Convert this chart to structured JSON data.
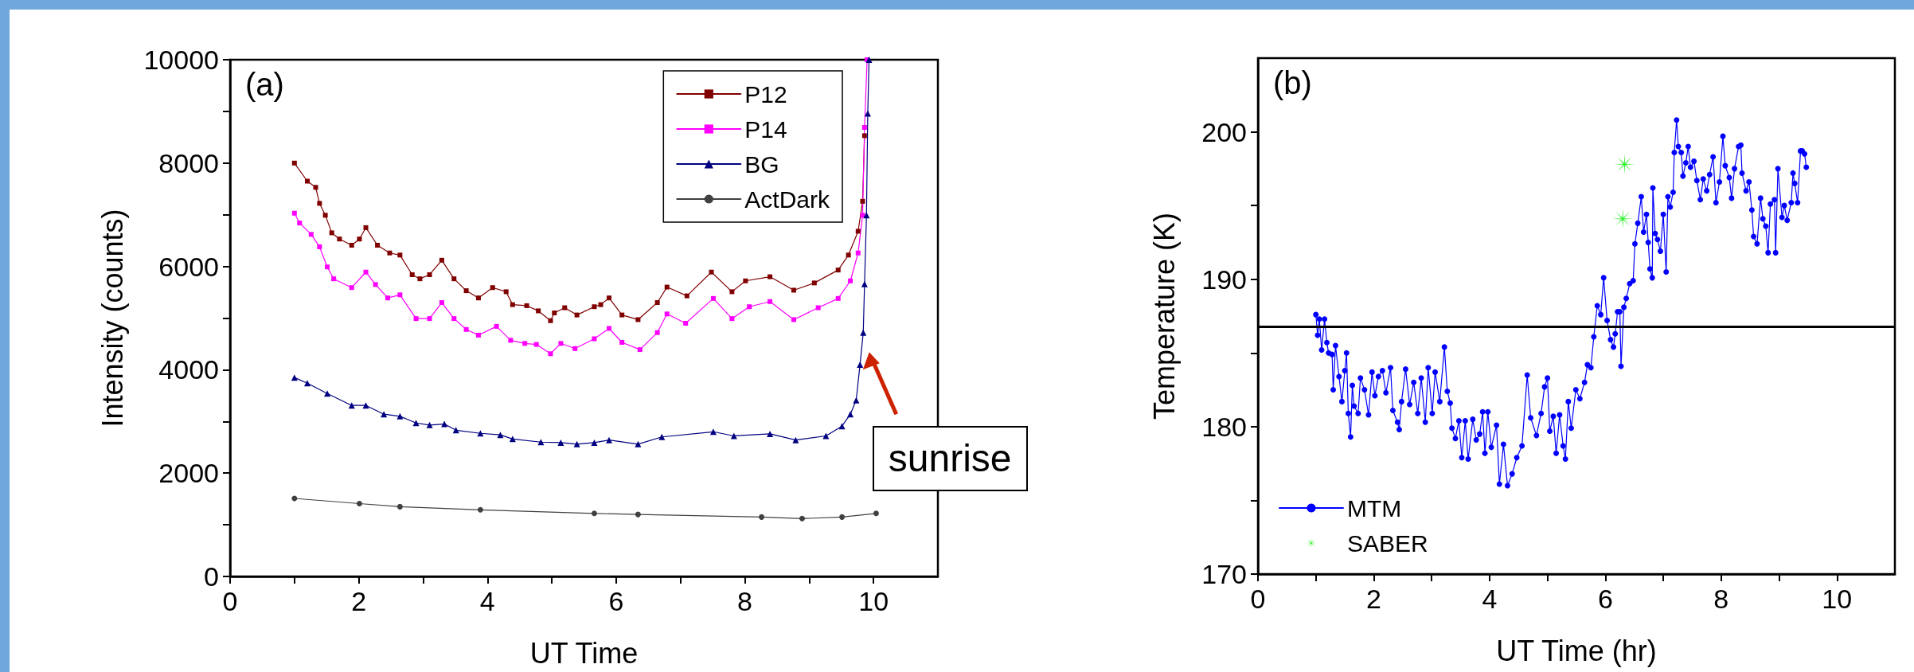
{
  "chart_data": [
    {
      "type": "line",
      "title": "(a)",
      "xlabel": "UT Time",
      "ylabel": "Intensity (counts)",
      "xlim": [
        0,
        11
      ],
      "xticks": [
        0,
        {
          "value": 1,
          "label": null
        },
        2,
        {
          "value": 3,
          "label": null
        },
        4,
        {
          "value": 5,
          "label": null
        },
        6,
        {
          "value": 7,
          "label": null
        },
        8,
        {
          "value": 9,
          "label": null
        },
        10
      ],
      "ylim": [
        0,
        10000
      ],
      "yticks": [
        0,
        {
          "value": 1000,
          "label": null
        },
        2000,
        {
          "value": 3000,
          "label": null
        },
        4000,
        {
          "value": 5000,
          "label": null
        },
        6000,
        {
          "value": 7000,
          "label": null
        },
        8000,
        {
          "value": 9000,
          "label": null
        },
        10000
      ],
      "legend": "top right",
      "annotations": [
        "sunrise"
      ],
      "series": [
        {
          "name": "P12",
          "color": "#800000",
          "marker": "square",
          "x": [
            1.0,
            1.2,
            1.33,
            1.39,
            1.48,
            1.58,
            1.7,
            1.89,
            2.01,
            2.11,
            2.29,
            2.48,
            2.64,
            2.83,
            2.95,
            3.1,
            3.29,
            3.48,
            3.67,
            3.86,
            4.08,
            4.29,
            4.39,
            4.61,
            4.79,
            4.98,
            5.04,
            5.2,
            5.39,
            5.66,
            5.76,
            5.89,
            6.09,
            6.34,
            6.64,
            6.79,
            7.1,
            7.48,
            7.8,
            8.01,
            8.39,
            8.76,
            9.08,
            9.45,
            9.61,
            9.76,
            9.83,
            9.86
          ],
          "values": [
            8000,
            7650,
            7530,
            7220,
            6990,
            6650,
            6530,
            6410,
            6530,
            6750,
            6410,
            6260,
            6220,
            5840,
            5760,
            5840,
            6120,
            5760,
            5530,
            5390,
            5590,
            5510,
            5260,
            5240,
            5140,
            4950,
            5100,
            5200,
            5060,
            5220,
            5260,
            5390,
            5060,
            4970,
            5300,
            5600,
            5430,
            5890,
            5510,
            5720,
            5800,
            5540,
            5680,
            5930,
            6220,
            6680,
            7260,
            8530
          ]
        },
        {
          "name": "P14",
          "color": "#ff00ff",
          "marker": "square",
          "x": [
            1.0,
            1.08,
            1.26,
            1.39,
            1.51,
            1.61,
            1.89,
            2.11,
            2.26,
            2.45,
            2.64,
            2.89,
            3.1,
            3.29,
            3.48,
            3.67,
            3.86,
            4.14,
            4.36,
            4.58,
            4.76,
            4.98,
            5.14,
            5.36,
            5.66,
            5.89,
            6.09,
            6.37,
            6.64,
            6.79,
            7.08,
            7.51,
            7.8,
            8.07,
            8.39,
            8.76,
            9.14,
            9.45,
            9.64,
            9.76,
            9.83,
            9.86,
            9.9
          ],
          "values": [
            7030,
            6840,
            6620,
            6380,
            5990,
            5760,
            5590,
            5890,
            5650,
            5390,
            5450,
            4990,
            4990,
            5300,
            4990,
            4780,
            4670,
            4840,
            4570,
            4510,
            4490,
            4310,
            4510,
            4410,
            4600,
            4800,
            4530,
            4390,
            4720,
            5080,
            4900,
            5380,
            4990,
            5220,
            5320,
            4970,
            5200,
            5380,
            5720,
            6260,
            6990,
            8690,
            10000
          ]
        },
        {
          "name": "BG",
          "color": "#000080",
          "marker": "triangle",
          "x": [
            1.0,
            1.2,
            1.51,
            1.89,
            2.11,
            2.39,
            2.64,
            2.89,
            3.1,
            3.33,
            3.51,
            3.89,
            4.2,
            4.39,
            4.83,
            5.14,
            5.39,
            5.66,
            5.89,
            6.34,
            6.71,
            7.51,
            7.83,
            8.39,
            8.79,
            9.26,
            9.51,
            9.64,
            9.73,
            9.79,
            9.84,
            9.86,
            9.89,
            9.91,
            9.93
          ],
          "values": [
            3850,
            3740,
            3540,
            3310,
            3310,
            3140,
            3100,
            2970,
            2930,
            2950,
            2830,
            2770,
            2740,
            2660,
            2600,
            2590,
            2560,
            2590,
            2640,
            2560,
            2700,
            2800,
            2720,
            2760,
            2640,
            2720,
            2910,
            3140,
            3410,
            4100,
            4720,
            5660,
            6990,
            8960,
            10000
          ]
        },
        {
          "name": "ActDark",
          "color": "#404040",
          "marker": "circle",
          "x": [
            1.0,
            2.01,
            2.64,
            3.89,
            5.66,
            6.34,
            8.26,
            8.89,
            9.51,
            10.04
          ],
          "values": [
            1510,
            1410,
            1350,
            1290,
            1220,
            1200,
            1150,
            1120,
            1150,
            1220
          ]
        }
      ]
    },
    {
      "type": "line",
      "title": "(b)",
      "xlabel": "UT Time (hr)",
      "ylabel": "Temperature (K)",
      "xlim": [
        0,
        11
      ],
      "xticks": [
        0,
        {
          "value": 1,
          "label": null
        },
        2,
        {
          "value": 3,
          "label": null
        },
        4,
        {
          "value": 5,
          "label": null
        },
        6,
        {
          "value": 7,
          "label": null
        },
        8,
        {
          "value": 9,
          "label": null
        },
        10
      ],
      "ylim": [
        170,
        205
      ],
      "yticks": [
        170,
        {
          "value": 175,
          "label": null
        },
        180,
        {
          "value": 185,
          "label": null
        },
        190,
        {
          "value": 195,
          "label": null
        },
        200
      ],
      "legend": "bottom left",
      "ref_lines": [
        {
          "axis": "y",
          "value": 186.8,
          "color": "#000000"
        }
      ],
      "series": [
        {
          "name": "MTM",
          "color": "#0000ff",
          "marker": "circle",
          "x": [
            1.0,
            1.03,
            1.06,
            1.1,
            1.15,
            1.19,
            1.22,
            1.28,
            1.3,
            1.34,
            1.4,
            1.45,
            1.5,
            1.53,
            1.56,
            1.6,
            1.63,
            1.66,
            1.73,
            1.77,
            1.84,
            1.91,
            1.97,
            2.02,
            2.08,
            2.15,
            2.21,
            2.29,
            2.33,
            2.41,
            2.44,
            2.48,
            2.55,
            2.62,
            2.69,
            2.76,
            2.82,
            2.89,
            2.94,
            3.01,
            3.06,
            3.14,
            3.22,
            3.27,
            3.32,
            3.35,
            3.41,
            3.47,
            3.52,
            3.58,
            3.63,
            3.71,
            3.77,
            3.83,
            3.88,
            3.92,
            3.97,
            4.03,
            4.12,
            4.17,
            4.24,
            4.31,
            4.39,
            4.47,
            4.56,
            4.65,
            4.71,
            4.81,
            4.89,
            4.95,
            5.0,
            5.04,
            5.1,
            5.15,
            5.21,
            5.27,
            5.31,
            5.36,
            5.41,
            5.49,
            5.56,
            5.64,
            5.69,
            5.75,
            5.8,
            5.86,
            5.92,
            5.97,
            6.03,
            6.09,
            6.14,
            6.17,
            6.21,
            6.25,
            6.27,
            6.32,
            6.36,
            6.42,
            6.48,
            6.51,
            6.56,
            6.62,
            6.66,
            6.71,
            6.74,
            6.77,
            6.81,
            6.82,
            6.86,
            6.9,
            6.95,
            7.0,
            7.05,
            7.08,
            7.12,
            7.17,
            7.19,
            7.23,
            7.26,
            7.31,
            7.34,
            7.39,
            7.43,
            7.47,
            7.53,
            7.58,
            7.64,
            7.69,
            7.75,
            7.8,
            7.86,
            7.91,
            7.97,
            8.03,
            8.07,
            8.14,
            8.18,
            8.23,
            8.3,
            8.34,
            8.36,
            8.43,
            8.48,
            8.53,
            8.56,
            8.62,
            8.68,
            8.72,
            8.77,
            8.81,
            8.85,
            8.92,
            8.94,
            8.98,
            9.05,
            9.09,
            9.14,
            9.21,
            9.24,
            9.27,
            9.32,
            9.37,
            9.4,
            9.44,
            9.47
          ],
          "values": [
            187.6,
            186.2,
            187.3,
            185.2,
            187.3,
            185.7,
            185.0,
            184.9,
            182.5,
            185.5,
            183.4,
            181.7,
            183.8,
            185.0,
            180.9,
            179.3,
            182.8,
            181.4,
            180.9,
            183.3,
            182.5,
            180.8,
            183.7,
            182.1,
            183.4,
            183.8,
            182.3,
            184.0,
            181.1,
            180.3,
            179.8,
            181.7,
            183.9,
            181.5,
            183.0,
            180.9,
            183.3,
            180.3,
            184.0,
            180.9,
            183.7,
            181.7,
            185.4,
            182.4,
            181.6,
            179.9,
            179.2,
            180.4,
            177.9,
            180.4,
            177.8,
            180.5,
            179.1,
            179.5,
            181.0,
            178.2,
            181.0,
            178.6,
            180.1,
            176.1,
            178.8,
            176.0,
            176.8,
            177.9,
            178.7,
            183.5,
            180.6,
            179.4,
            180.9,
            182.7,
            183.3,
            179.7,
            180.7,
            178.2,
            180.8,
            178.7,
            177.8,
            181.7,
            179.9,
            182.5,
            181.9,
            183.0,
            184.2,
            184.0,
            186.1,
            188.2,
            187.6,
            190.1,
            187.2,
            185.9,
            185.4,
            186.3,
            187.8,
            187.8,
            184.1,
            188.1,
            188.7,
            189.7,
            189.9,
            192.4,
            193.8,
            195.6,
            193.2,
            194.4,
            192.5,
            190.7,
            190.1,
            196.2,
            193.1,
            192.7,
            191.9,
            194.4,
            190.5,
            195.6,
            194.9,
            195.9,
            198.6,
            200.8,
            199.0,
            198.6,
            197.0,
            197.9,
            199.0,
            197.6,
            198.0,
            196.7,
            195.4,
            196.8,
            196.0,
            197.1,
            198.3,
            195.2,
            196.6,
            199.7,
            197.7,
            196.9,
            195.5,
            197.5,
            199.0,
            199.1,
            197.2,
            196.0,
            196.6,
            194.7,
            192.9,
            192.4,
            195.5,
            194.1,
            193.6,
            191.8,
            195.1,
            195.4,
            191.8,
            197.5,
            194.2,
            195.0,
            194.0,
            195.2,
            197.2,
            196.5,
            195.2,
            198.7,
            198.7,
            198.5,
            197.6
          ]
        },
        {
          "name": "SABER",
          "type": "scatter",
          "color": "#00ee00",
          "marker": "cross",
          "x": [
            6.33,
            6.3
          ],
          "values": [
            197.8,
            194.1
          ]
        }
      ]
    }
  ]
}
